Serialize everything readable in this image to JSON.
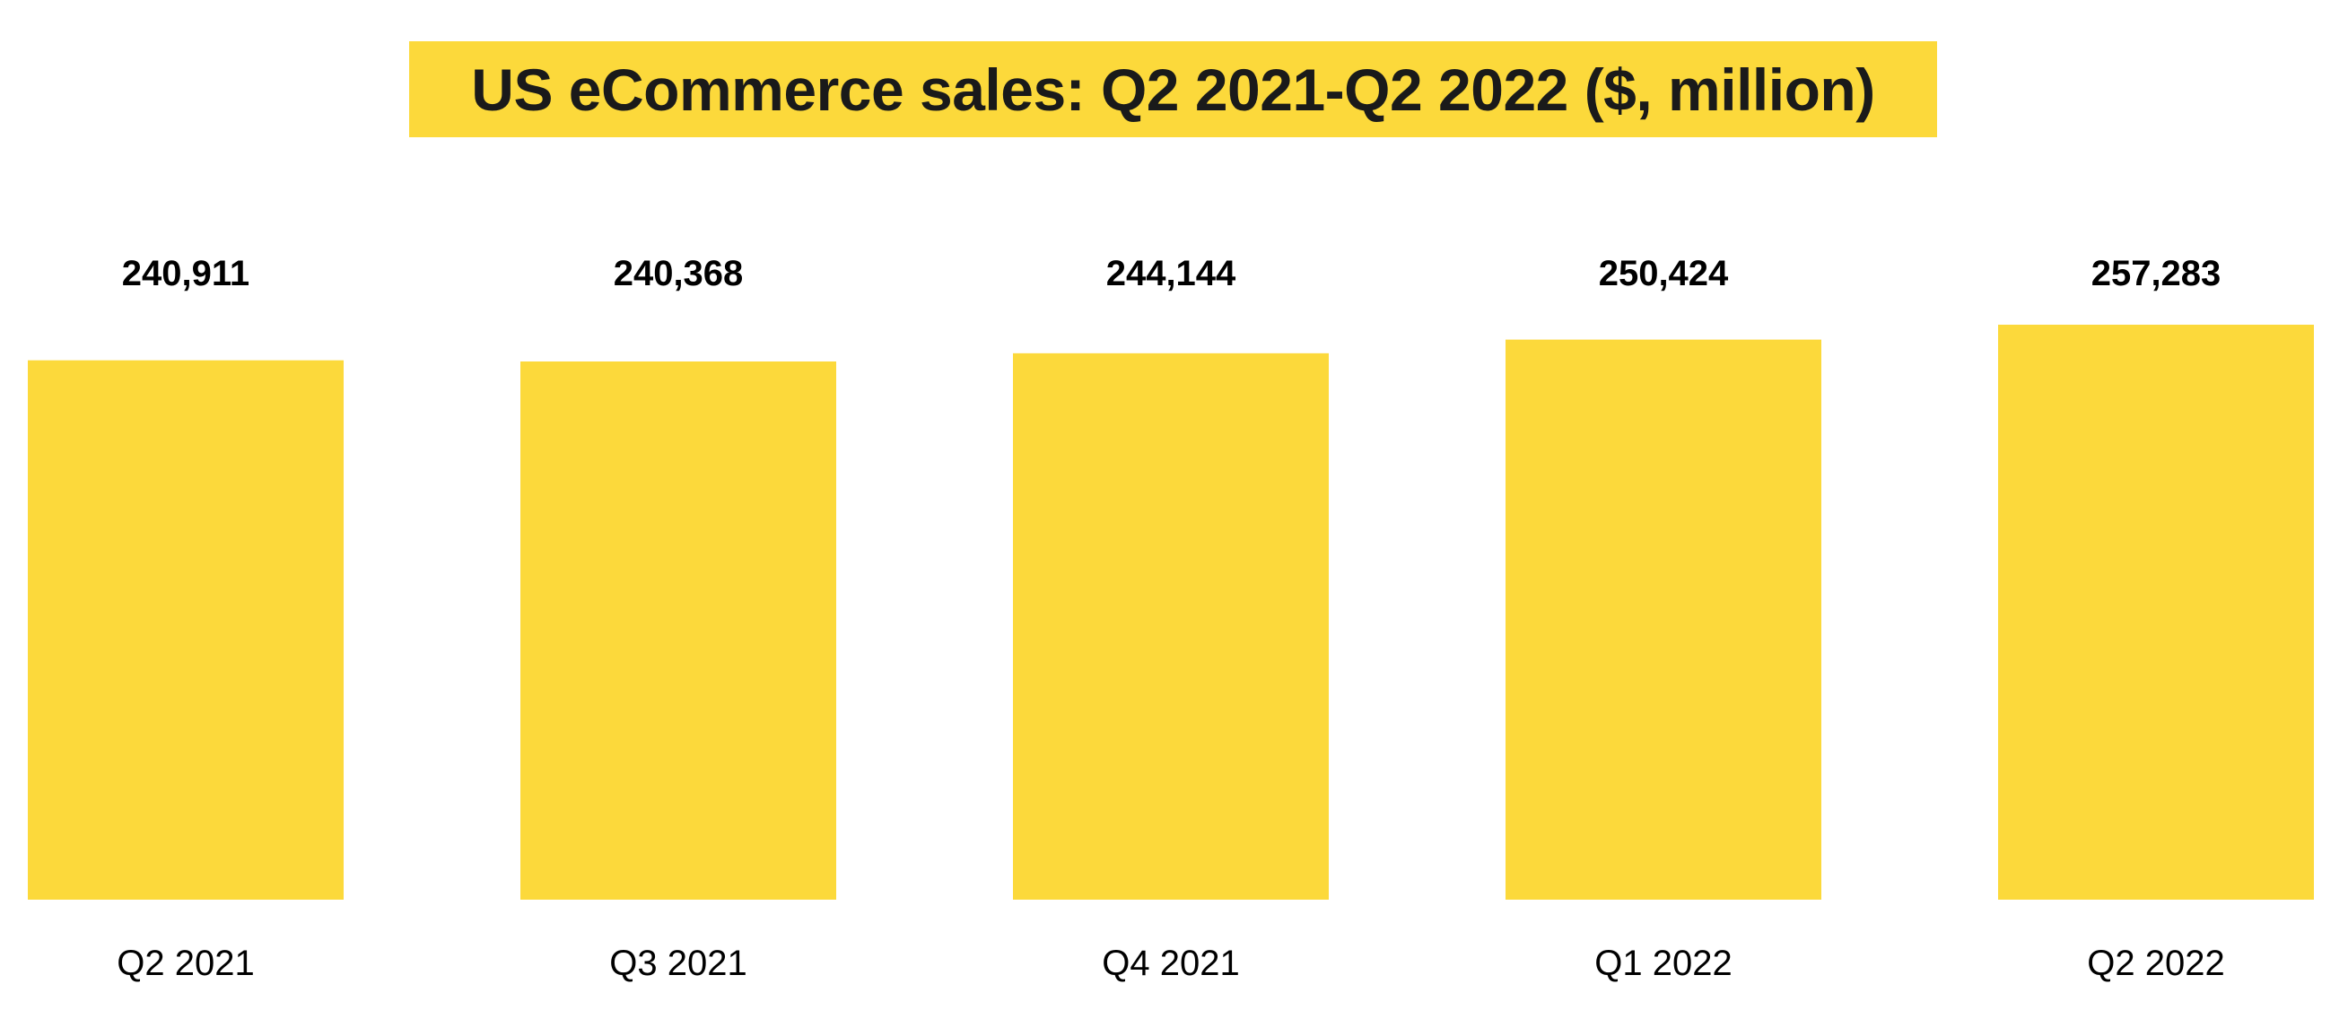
{
  "chart_data": {
    "type": "bar",
    "title": "US eCommerce sales: Q2 2021-Q2 2022 ($, million)",
    "categories": [
      "Q2 2021",
      "Q3 2021",
      "Q4 2021",
      "Q1 2022",
      "Q2 2022"
    ],
    "values": [
      240911,
      240368,
      244144,
      250424,
      257283
    ],
    "value_labels": [
      "240,911",
      "240,368",
      "244,144",
      "250,424",
      "257,283"
    ],
    "xlabel": "",
    "ylabel": "",
    "ylim": [
      0,
      257283
    ],
    "grid": false,
    "legend": "none",
    "colors": {
      "bar": "#fcd93b",
      "title_background": "#fcd93b",
      "text": "#1a1a1a"
    }
  }
}
